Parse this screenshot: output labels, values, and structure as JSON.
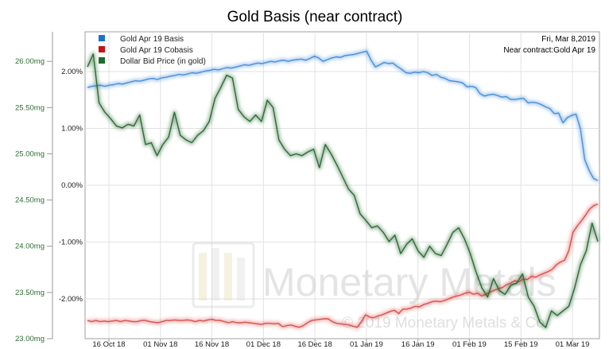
{
  "chart_data": {
    "type": "line",
    "title": "Gold Basis (near contract)",
    "date_label": "Fri, Mar 8,2019",
    "contract_label": "Near contract:Gold Apr 19",
    "watermark_text": "Monetary Metals",
    "copyright_text": "© 2019 Monetary Metals & Co.",
    "grid": true,
    "legend_position": "top-left",
    "x_ticks": [
      "16 Oct 18",
      "01 Nov 18",
      "16 Nov 18",
      "01 Dec 18",
      "16 Dec 18",
      "01 Jan 19",
      "16 Jan 19",
      "01 Feb 19",
      "15 Feb 19",
      "01 Mar 19"
    ],
    "left_axis": {
      "ticks": [
        "26.00mg",
        "25.50mg",
        "25.00mg",
        "24.50mg",
        "24.00mg",
        "23.50mg",
        "23.00mg"
      ],
      "range": [
        23.0,
        26.32
      ],
      "color": "#2e6b35"
    },
    "right_axis": {
      "ticks": [
        "2.00%",
        "1.00%",
        "0.00%",
        "-1.00%",
        "-2.00%"
      ],
      "range": [
        -2.7,
        2.7
      ]
    },
    "series": [
      {
        "name": "Gold Apr 19 Basis",
        "color": "#4a90d9",
        "axis": "right",
        "values": [
          1.72,
          1.74,
          1.75,
          1.76,
          1.74,
          1.76,
          1.77,
          1.79,
          1.78,
          1.8,
          1.82,
          1.84,
          1.83,
          1.85,
          1.87,
          1.88,
          1.86,
          1.89,
          1.9,
          1.92,
          1.93,
          1.95,
          1.94,
          1.96,
          1.98,
          1.97,
          1.99,
          2.01,
          2.02,
          2.04,
          2.03,
          2.05,
          2.07,
          2.06,
          2.08,
          2.1,
          2.12,
          2.11,
          2.13,
          2.15,
          2.14,
          2.16,
          2.18,
          2.17,
          2.19,
          2.2,
          2.18,
          2.2,
          2.21,
          2.22,
          2.2,
          2.23,
          2.27,
          2.24,
          2.18,
          2.21,
          2.24,
          2.26,
          2.25,
          2.28,
          2.29,
          2.3,
          2.32,
          2.34,
          2.36,
          2.2,
          2.08,
          2.12,
          2.16,
          2.14,
          2.15,
          2.09,
          2.04,
          1.98,
          1.97,
          1.99,
          1.98,
          2.0,
          1.98,
          1.93,
          1.95,
          1.9,
          1.88,
          1.84,
          1.83,
          1.82,
          1.8,
          1.73,
          1.74,
          1.72,
          1.61,
          1.57,
          1.59,
          1.6,
          1.58,
          1.55,
          1.56,
          1.51,
          1.51,
          1.52,
          1.53,
          1.45,
          1.46,
          1.45,
          1.42,
          1.38,
          1.35,
          1.26,
          1.27,
          1.1,
          1.19,
          1.23,
          1.25,
          0.99,
          0.45,
          0.26,
          0.12,
          0.08
        ]
      },
      {
        "name": "Gold Apr 19 Cobasis",
        "color": "#d9534f",
        "axis": "right",
        "values": [
          -2.38,
          -2.4,
          -2.38,
          -2.4,
          -2.39,
          -2.4,
          -2.39,
          -2.38,
          -2.4,
          -2.38,
          -2.39,
          -2.4,
          -2.4,
          -2.38,
          -2.38,
          -2.4,
          -2.41,
          -2.42,
          -2.4,
          -2.38,
          -2.38,
          -2.37,
          -2.38,
          -2.38,
          -2.37,
          -2.38,
          -2.4,
          -2.38,
          -2.39,
          -2.37,
          -2.36,
          -2.38,
          -2.38,
          -2.4,
          -2.42,
          -2.4,
          -2.42,
          -2.42,
          -2.41,
          -2.42,
          -2.43,
          -2.44,
          -2.45,
          -2.43,
          -2.43,
          -2.44,
          -2.43,
          -2.49,
          -2.47,
          -2.46,
          -2.48,
          -2.5,
          -2.47,
          -2.42,
          -2.38,
          -2.37,
          -2.36,
          -2.35,
          -2.35,
          -2.4,
          -2.43,
          -2.44,
          -2.45,
          -2.46,
          -2.48,
          -2.5,
          -2.4,
          -2.28,
          -2.32,
          -2.33,
          -2.3,
          -2.28,
          -2.25,
          -2.22,
          -2.2,
          -2.26,
          -2.18,
          -2.18,
          -2.16,
          -2.13,
          -2.14,
          -2.1,
          -2.08,
          -2.05,
          -2.04,
          -2.05,
          -2.03,
          -2.0,
          -1.97,
          -1.95,
          -1.93,
          -1.9,
          -1.88,
          -1.92,
          -1.9,
          -1.95,
          -1.92,
          -1.88,
          -1.85,
          -1.82,
          -1.8,
          -1.75,
          -1.72,
          -1.68,
          -1.7,
          -1.65,
          -1.66,
          -1.6,
          -1.62,
          -1.58,
          -1.55,
          -1.52,
          -1.48,
          -1.4,
          -1.35,
          -1.32,
          -1.15,
          -0.83,
          -0.72,
          -0.63,
          -0.53,
          -0.42,
          -0.36,
          -0.33
        ]
      },
      {
        "name": "Dollar Bid Price (in gold)",
        "color": "#2e6b35",
        "axis": "left",
        "values": [
          25.94,
          26.08,
          25.55,
          25.45,
          25.38,
          25.3,
          25.28,
          25.32,
          25.3,
          25.42,
          25.1,
          25.12,
          24.98,
          25.1,
          25.18,
          25.45,
          25.2,
          25.15,
          25.12,
          25.2,
          25.25,
          25.35,
          25.6,
          25.72,
          25.85,
          25.82,
          25.48,
          25.4,
          25.35,
          25.42,
          25.35,
          25.58,
          25.5,
          25.15,
          25.05,
          24.98,
          25.0,
          24.98,
          25.02,
          25.05,
          24.85,
          25.1,
          25.0,
          24.88,
          24.75,
          24.62,
          24.55,
          24.35,
          24.28,
          24.2,
          24.22,
          24.15,
          24.05,
          24.12,
          23.92,
          24.02,
          24.08,
          23.95,
          23.88,
          24.0,
          23.92,
          23.9,
          24.02,
          24.15,
          24.2,
          24.08,
          23.92,
          23.72,
          23.55,
          23.45,
          23.65,
          23.52,
          23.48,
          23.58,
          23.6,
          23.7,
          23.45,
          23.35,
          23.18,
          23.12,
          23.3,
          23.25,
          23.3,
          23.35,
          23.55,
          23.8,
          23.95,
          24.25,
          24.05
        ]
      }
    ]
  }
}
